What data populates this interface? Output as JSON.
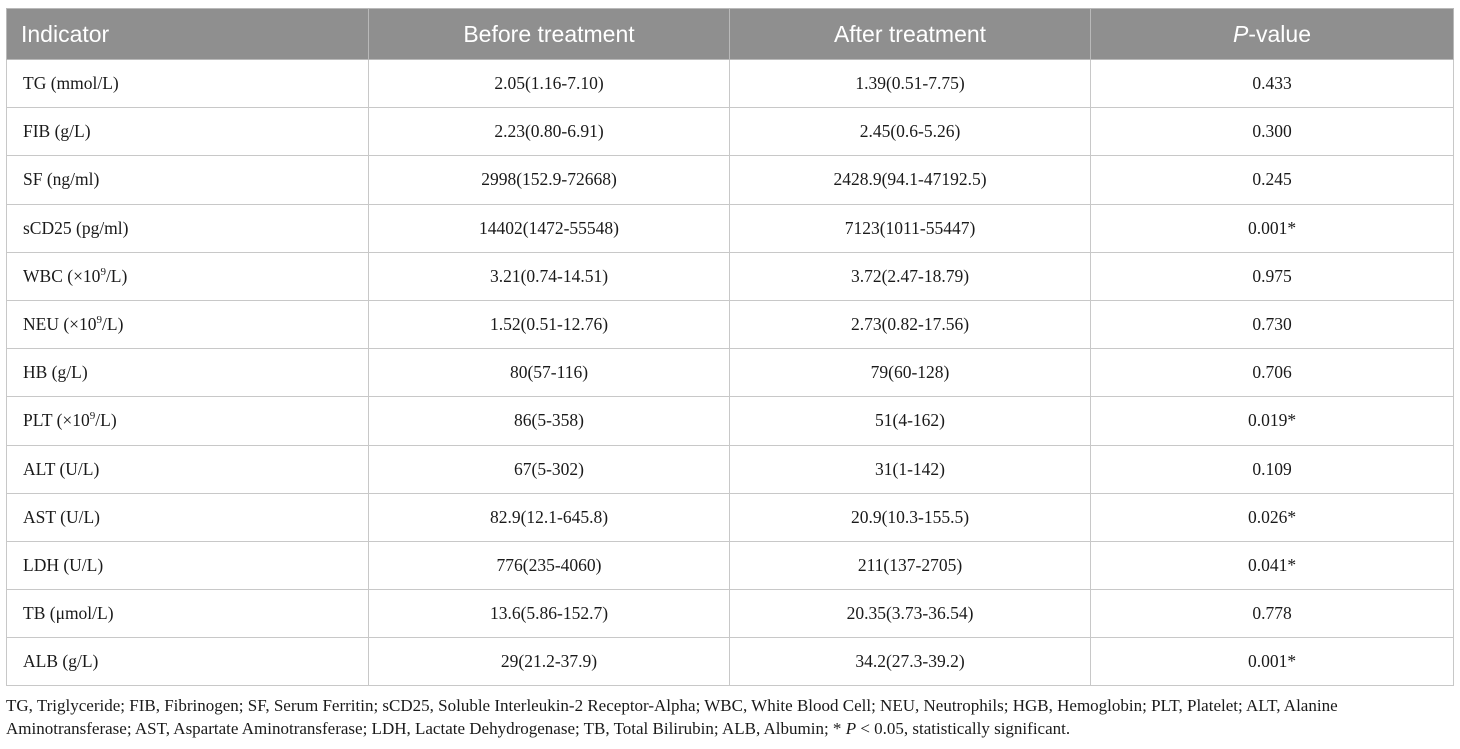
{
  "table": {
    "headers": {
      "indicator": "Indicator",
      "before": "Before treatment",
      "after": "After treatment",
      "p_prefix": "P",
      "p_suffix": "-value"
    },
    "rows": [
      {
        "name": "TG (mmol/L)",
        "before": "2.05(1.16-7.10)",
        "after": "1.39(0.51-7.75)",
        "p": "0.433"
      },
      {
        "name": "FIB (g/L)",
        "before": "2.23(0.80-6.91)",
        "after": "2.45(0.6-5.26)",
        "p": "0.300"
      },
      {
        "name": "SF (ng/ml)",
        "before": "2998(152.9-72668)",
        "after": "2428.9(94.1-47192.5)",
        "p": "0.245"
      },
      {
        "name": "sCD25 (pg/ml)",
        "before": "14402(1472-55548)",
        "after": "7123(1011-55447)",
        "p": "0.001*"
      },
      {
        "name_pre": "WBC (×10",
        "name_sup": "9",
        "name_post": "/L)",
        "before": "3.21(0.74-14.51)",
        "after": "3.72(2.47-18.79)",
        "p": "0.975"
      },
      {
        "name_pre": "NEU (×10",
        "name_sup": "9",
        "name_post": "/L)",
        "before": "1.52(0.51-12.76)",
        "after": "2.73(0.82-17.56)",
        "p": "0.730"
      },
      {
        "name": "HB (g/L)",
        "before": "80(57-116)",
        "after": "79(60-128)",
        "p": "0.706"
      },
      {
        "name_pre": "PLT (×10",
        "name_sup": "9",
        "name_post": "/L)",
        "before": "86(5-358)",
        "after": "51(4-162)",
        "p": "0.019*"
      },
      {
        "name": "ALT (U/L)",
        "before": "67(5-302)",
        "after": "31(1-142)",
        "p": "0.109"
      },
      {
        "name": "AST (U/L)",
        "before": "82.9(12.1-645.8)",
        "after": "20.9(10.3-155.5)",
        "p": "0.026*"
      },
      {
        "name": "LDH (U/L)",
        "before": "776(235-4060)",
        "after": "211(137-2705)",
        "p": "0.041*"
      },
      {
        "name": "TB (μmol/L)",
        "before": "13.6(5.86-152.7)",
        "after": "20.35(3.73-36.54)",
        "p": "0.778"
      },
      {
        "name": "ALB (g/L)",
        "before": "29(21.2-37.9)",
        "after": "34.2(27.3-39.2)",
        "p": "0.001*"
      }
    ]
  },
  "footnote": {
    "part1": "TG, Triglyceride; FIB, Fibrinogen; SF, Serum Ferritin; sCD25, Soluble Interleukin-2 Receptor-Alpha; WBC, White Blood Cell; NEU, Neutrophils; HGB, Hemoglobin; PLT, Platelet; ALT, Alanine Aminotransferase; AST, Aspartate Aminotransferase; LDH, Lactate Dehydrogenase; TB, Total Bilirubin; ALB, Albumin; * ",
    "p_letter": "P",
    "part2": " < 0.05, statistically significant."
  }
}
